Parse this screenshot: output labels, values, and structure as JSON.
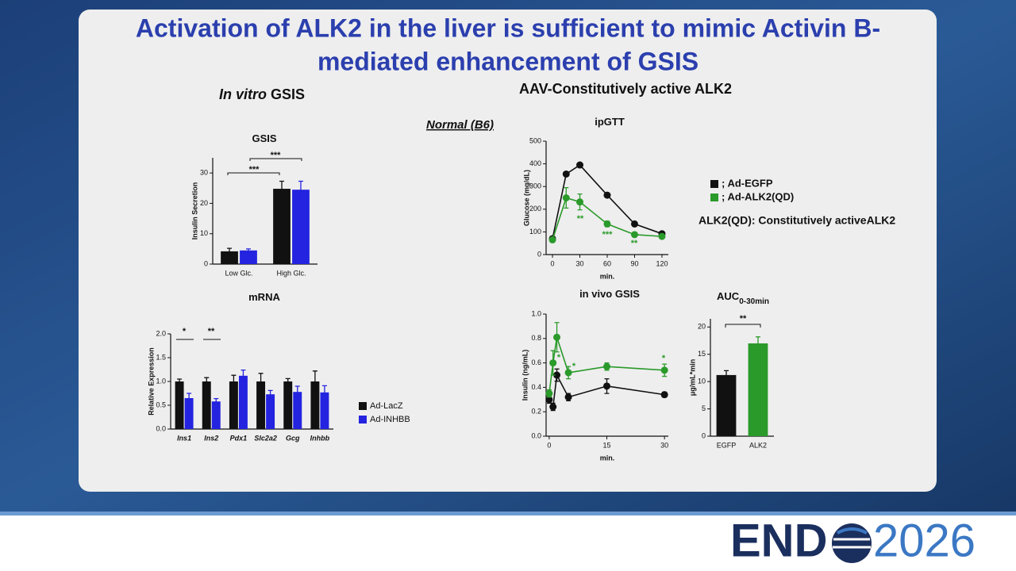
{
  "slide": {
    "title_lines": [
      "Activation of ALK2 in the liver is sufficient to mimic Activin B-",
      "mediated enhancement of  GSIS"
    ],
    "left_heading": {
      "italic": "In vitro",
      "text": "GSIS"
    },
    "right_heading": "AAV-Constitutively active ALK2",
    "group_label": "Normal (B6)",
    "note": "ALK2(QD): Constitutively activeALK2"
  },
  "logo": {
    "left": "END",
    "right": "2026"
  },
  "chart_data": [
    {
      "type": "bar",
      "title": "GSIS",
      "y_label": "Insulin Secretion",
      "categories": [
        "Low Glc.",
        "High Glc."
      ],
      "series": [
        {
          "color": "#111111",
          "values": [
            4.2,
            24.8
          ],
          "errors": [
            1.0,
            2.5
          ]
        },
        {
          "color": "#2323e0",
          "values": [
            4.5,
            24.5
          ],
          "errors": [
            0.5,
            2.8
          ]
        }
      ],
      "ylim": [
        0,
        35
      ],
      "yticks": [
        0,
        10,
        20,
        30
      ],
      "annotations": [
        "***",
        "***"
      ],
      "legend": false
    },
    {
      "type": "bar",
      "title": "mRNA",
      "y_label": "Relative Expression",
      "categories": [
        "Ins1",
        "Ins2",
        "Pdx1",
        "Slc2a2",
        "Gcg",
        "Inhbb"
      ],
      "series": [
        {
          "name": "Ad-LacZ",
          "color": "#111111",
          "values": [
            1.0,
            1.0,
            1.0,
            1.0,
            1.0,
            1.0
          ],
          "errors": [
            0.05,
            0.08,
            0.13,
            0.17,
            0.06,
            0.22
          ]
        },
        {
          "name": "Ad-INHBB",
          "color": "#2323e0",
          "values": [
            0.65,
            0.58,
            1.12,
            0.73,
            0.78,
            0.77
          ],
          "errors": [
            0.1,
            0.06,
            0.12,
            0.08,
            0.12,
            0.14
          ]
        }
      ],
      "ylim": [
        0,
        2.0
      ],
      "yticks": [
        {
          "value": 0,
          "label": "0.0"
        },
        0.5,
        {
          "value": 1,
          "label": "1.0"
        },
        1.5,
        {
          "value": 2,
          "label": "2.0"
        }
      ],
      "annotations": [
        "*",
        "**"
      ],
      "legend": "right"
    },
    {
      "type": "line",
      "title": "ipGTT",
      "y_label": "Glucose (mg/dL)",
      "x_label": "min.",
      "x": [
        0,
        15,
        30,
        60,
        90,
        120
      ],
      "series": [
        {
          "name": "; Ad-EGFP",
          "color": "#111111",
          "values": [
            70,
            355,
            395,
            262,
            135,
            92
          ],
          "errors": [
            5,
            8,
            6,
            6,
            6,
            5
          ]
        },
        {
          "name": "; Ad-ALK2(QD)",
          "color": "#2a9a2a",
          "values": [
            65,
            250,
            232,
            135,
            88,
            80
          ],
          "errors": [
            8,
            45,
            35,
            12,
            8,
            8
          ]
        }
      ],
      "xlim": [
        -7,
        127
      ],
      "xticks": [
        0,
        30,
        60,
        90,
        120
      ],
      "ylim": [
        0,
        500
      ],
      "yticks": [
        0,
        100,
        200,
        300,
        400,
        500
      ],
      "annotations": [
        "**",
        "***",
        "**"
      ],
      "legend": "right"
    },
    {
      "type": "line",
      "title": "in vivo GSIS",
      "y_label": "Insulin (ng/mL)",
      "x_label": "min.",
      "x": [
        0,
        1,
        2,
        5,
        15,
        30
      ],
      "series": [
        {
          "color": "#111111",
          "values": [
            0.3,
            0.24,
            0.5,
            0.32,
            0.41,
            0.34
          ],
          "errors": [
            0.03,
            0.03,
            0.05,
            0.03,
            0.06,
            0.02
          ]
        },
        {
          "color": "#2a9a2a",
          "values": [
            0.35,
            0.6,
            0.81,
            0.52,
            0.57,
            0.54
          ],
          "errors": [
            0.03,
            0.1,
            0.12,
            0.05,
            0.03,
            0.05
          ]
        }
      ],
      "xlim": [
        -0.8,
        31
      ],
      "xticks": [
        0,
        15,
        30
      ],
      "ylim": [
        0,
        1.0
      ],
      "yticks": [
        {
          "value": 0,
          "label": "0.0"
        },
        0.2,
        0.4,
        0.6,
        0.8,
        {
          "value": 1,
          "label": "1.0"
        }
      ],
      "annotations": [
        "*",
        "*",
        "*"
      ],
      "legend": false
    },
    {
      "type": "bar",
      "title": "AUC",
      "title_sub": "0-30min",
      "y_label": "μg/mL*min",
      "categories": [
        "EGFP",
        "ALK2"
      ],
      "values": [
        11.2,
        17.0
      ],
      "errors": [
        0.8,
        1.2
      ],
      "colors": [
        "#111111",
        "#2a9a2a"
      ],
      "ylim": [
        0,
        21.5
      ],
      "yticks": [
        0,
        5,
        10,
        15,
        20
      ],
      "annotations": [
        "**"
      ],
      "legend": false
    }
  ]
}
